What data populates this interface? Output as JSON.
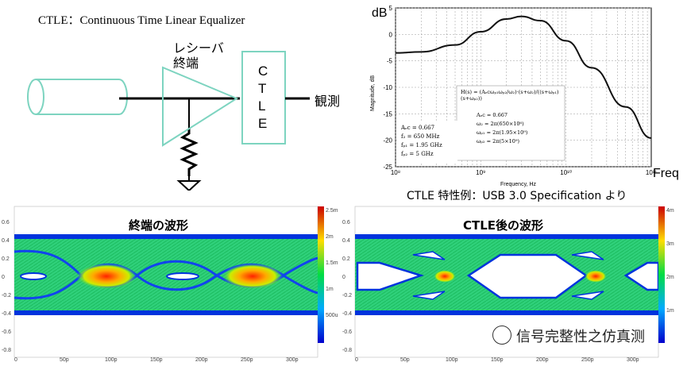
{
  "title": "CTLE：Continuous Time Linear Equalizer",
  "schematic": {
    "receiver_label_1": "レシーバ",
    "receiver_label_2": "終端",
    "ctle_letters": [
      "C",
      "T",
      "L",
      "E"
    ],
    "output_label": "観測"
  },
  "plot": {
    "y_unit": "dB",
    "x_unit": "Freq",
    "ylabel": "Magnitude, dB",
    "xlabel": "Frequency, Hz",
    "y_ticks": [
      "5",
      "0",
      "-5",
      "-10",
      "-15",
      "-20",
      "-25"
    ],
    "x_ticks": [
      "10⁸",
      "10⁹",
      "10¹⁰",
      "10¹¹"
    ],
    "params": [
      "Aₑc = 0.667",
      "f₂ = 650 MHz",
      "fₚ₁ = 1.95 GHz",
      "fₚ₂ = 5 GHz"
    ],
    "formula": "H(s) = (Aₑcωₚ₁ωₚ₂/ω₂)·(s+ω₂)/((s+ωₚ₁)(s+ωₚ₂))",
    "formula_params": [
      "Aₑc = 0.667",
      "ω₂ = 2π(650×10⁶)",
      "ωₚ₁ = 2π(1.95×10⁹)",
      "ωₚ₂ = 2π(5×10⁹)"
    ],
    "caption": "CTLE 特性例：USB 3.0 Specification より",
    "line_color": "#111111"
  },
  "eye_left": {
    "title": "終端の波形",
    "y_ticks": [
      "0.6",
      "0.4",
      "0.2",
      "0",
      "-0.2",
      "-0.4",
      "-0.6",
      "-0.8"
    ],
    "x_ticks": [
      "0",
      "50p",
      "100p",
      "150p",
      "200p",
      "250p",
      "300p"
    ],
    "colorbar": [
      "2.5m",
      "2m",
      "1.5m",
      "1m",
      "500u"
    ]
  },
  "eye_right": {
    "title": "CTLE後の波形",
    "y_ticks": [
      "0.6",
      "0.4",
      "0.2",
      "0",
      "-0.2",
      "-0.4",
      "-0.6",
      "-0.8"
    ],
    "x_ticks": [
      "0",
      "50p",
      "100p",
      "150p",
      "200p",
      "250p",
      "300p"
    ],
    "colorbar": [
      "4m",
      "3m",
      "2m",
      "1m"
    ]
  },
  "watermark": "信号完整性之仿真测",
  "chart_data": {
    "type": "line",
    "title": "",
    "xlabel": "Frequency, Hz",
    "ylabel": "Magnitude, dB",
    "x_scale": "log",
    "xlim": [
      100000000,
      100000000000
    ],
    "ylim": [
      -25,
      5
    ],
    "grid": true,
    "series": [
      {
        "x": [
          100000000,
          200000000,
          500000000,
          1000000000,
          2000000000,
          3000000000,
          5000000000,
          10000000000,
          20000000000,
          50000000000,
          100000000000
        ],
        "values": [
          -3.5,
          -3.3,
          -2.0,
          0.5,
          2.9,
          3.4,
          2.6,
          -1.2,
          -6.3,
          -13.7,
          -19.6
        ]
      }
    ]
  }
}
